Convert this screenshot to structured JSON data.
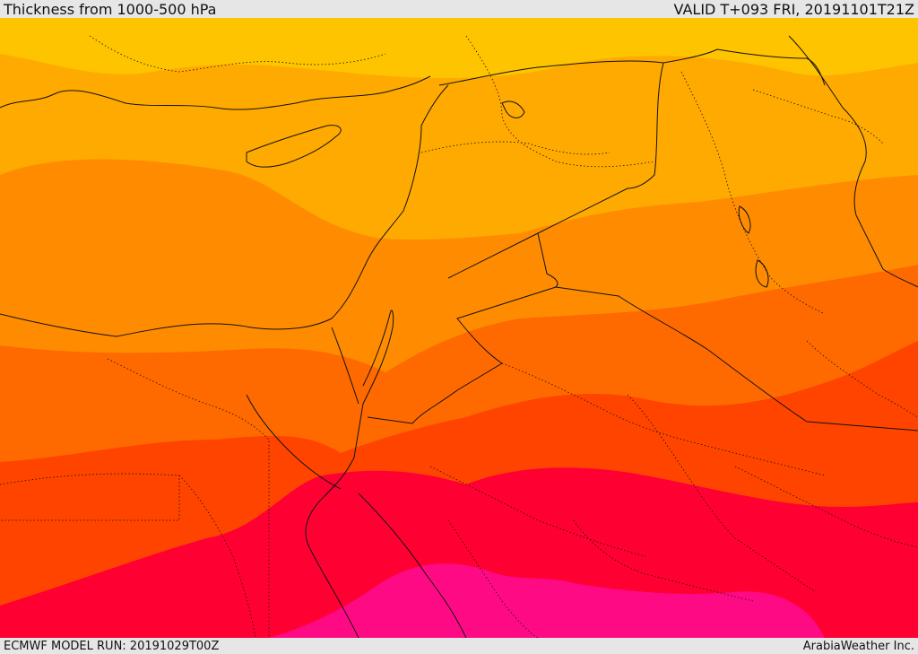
{
  "header": {
    "title": "Thickness from 1000-500 hPa",
    "valid": "VALID T+093 FRI, 20191101T21Z"
  },
  "footer": {
    "model_run": "ECMWF MODEL RUN: 20191029T00Z",
    "credit": "ArabiaWeather Inc."
  },
  "palette": {
    "band1": "#ffc400",
    "band2": "#ffaa00",
    "band3": "#ff8c00",
    "band4": "#ff6a00",
    "band5": "#ff4400",
    "band6": "#ff0033",
    "band7": "#ff0a85",
    "border": "#111111"
  }
}
